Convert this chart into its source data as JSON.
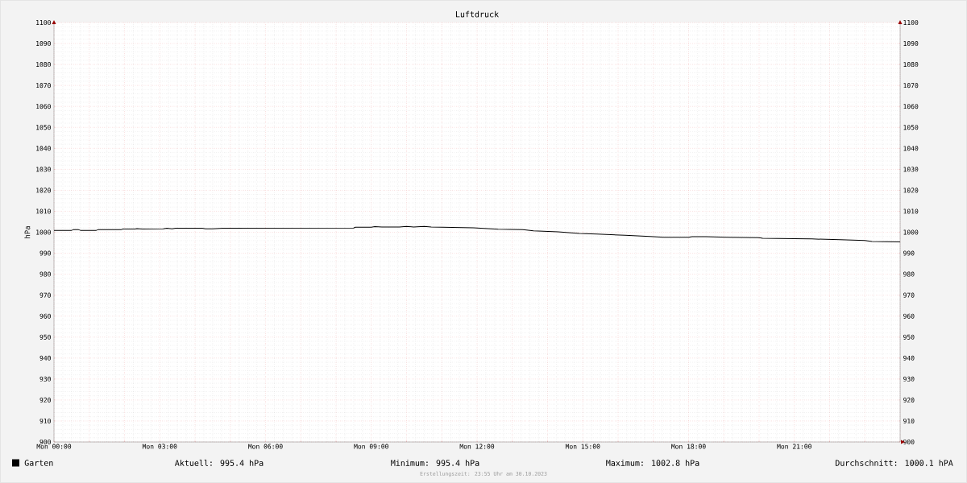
{
  "chart_data": {
    "type": "line",
    "title": "Luftdruck",
    "ylabel": "hPa",
    "x": [
      "2023-10-30T00:00",
      "2023-10-30T00:30",
      "2023-10-30T00:33",
      "2023-10-30T00:42",
      "2023-10-30T00:45",
      "2023-10-30T01:12",
      "2023-10-30T01:15",
      "2023-10-30T01:54",
      "2023-10-30T01:57",
      "2023-10-30T02:18",
      "2023-10-30T02:21",
      "2023-10-30T02:30",
      "2023-10-30T03:06",
      "2023-10-30T03:12",
      "2023-10-30T03:21",
      "2023-10-30T03:27",
      "2023-10-30T04:12",
      "2023-10-30T04:18",
      "2023-10-30T04:30",
      "2023-10-30T04:48",
      "2023-10-30T08:30",
      "2023-10-30T08:33",
      "2023-10-30T09:00",
      "2023-10-30T09:06",
      "2023-10-30T09:18",
      "2023-10-30T09:48",
      "2023-10-30T10:00",
      "2023-10-30T10:12",
      "2023-10-30T10:30",
      "2023-10-30T10:42",
      "2023-10-30T11:54",
      "2023-10-30T12:12",
      "2023-10-30T12:36",
      "2023-10-30T13:18",
      "2023-10-30T13:36",
      "2023-10-30T14:18",
      "2023-10-30T14:36",
      "2023-10-30T14:54",
      "2023-10-30T15:24",
      "2023-10-30T16:12",
      "2023-10-30T16:54",
      "2023-10-30T17:18",
      "2023-10-30T18:00",
      "2023-10-30T18:06",
      "2023-10-30T18:30",
      "2023-10-30T19:06",
      "2023-10-30T20:00",
      "2023-10-30T20:06",
      "2023-10-30T21:00",
      "2023-10-30T21:30",
      "2023-10-30T22:18",
      "2023-10-30T23:00",
      "2023-10-30T23:12",
      "2023-10-31T00:00"
    ],
    "series": [
      {
        "name": "Garten",
        "color": "#000000",
        "values": [
          1000.9,
          1000.9,
          1001.2,
          1001.2,
          1000.9,
          1000.9,
          1001.2,
          1001.2,
          1001.5,
          1001.5,
          1001.7,
          1001.5,
          1001.6,
          1001.9,
          1001.6,
          1001.9,
          1001.9,
          1001.6,
          1001.6,
          1001.9,
          1002.0,
          1002.4,
          1002.4,
          1002.7,
          1002.5,
          1002.5,
          1002.8,
          1002.5,
          1002.8,
          1002.5,
          1002.1,
          1001.8,
          1001.4,
          1001.2,
          1000.7,
          1000.2,
          999.8,
          999.4,
          999.1,
          998.6,
          998.0,
          997.6,
          997.6,
          997.9,
          997.9,
          997.6,
          997.4,
          997.1,
          996.9,
          996.8,
          996.4,
          996.1,
          995.6,
          995.4
        ]
      }
    ],
    "xlim": [
      "2023-10-30T00:00",
      "2023-10-31T00:00"
    ],
    "xticks": [
      {
        "value": "2023-10-30T00:00",
        "label": "Mon 00:00"
      },
      {
        "value": "2023-10-30T01:00",
        "label": null
      },
      {
        "value": "2023-10-30T02:00",
        "label": null
      },
      {
        "value": "2023-10-30T03:00",
        "label": "Mon 03:00"
      },
      {
        "value": "2023-10-30T04:00",
        "label": null
      },
      {
        "value": "2023-10-30T05:00",
        "label": null
      },
      {
        "value": "2023-10-30T06:00",
        "label": "Mon 06:00"
      },
      {
        "value": "2023-10-30T07:00",
        "label": null
      },
      {
        "value": "2023-10-30T08:00",
        "label": null
      },
      {
        "value": "2023-10-30T09:00",
        "label": "Mon 09:00"
      },
      {
        "value": "2023-10-30T10:00",
        "label": null
      },
      {
        "value": "2023-10-30T11:00",
        "label": null
      },
      {
        "value": "2023-10-30T12:00",
        "label": "Mon 12:00"
      },
      {
        "value": "2023-10-30T13:00",
        "label": null
      },
      {
        "value": "2023-10-30T14:00",
        "label": null
      },
      {
        "value": "2023-10-30T15:00",
        "label": "Mon 15:00"
      },
      {
        "value": "2023-10-30T16:00",
        "label": null
      },
      {
        "value": "2023-10-30T17:00",
        "label": null
      },
      {
        "value": "2023-10-30T18:00",
        "label": "Mon 18:00"
      },
      {
        "value": "2023-10-30T19:00",
        "label": null
      },
      {
        "value": "2023-10-30T20:00",
        "label": null
      },
      {
        "value": "2023-10-30T21:00",
        "label": "Mon 21:00"
      },
      {
        "value": "2023-10-30T22:00",
        "label": null
      },
      {
        "value": "2023-10-30T23:00",
        "label": null
      },
      {
        "value": "2023-10-31T00:00",
        "label": null
      }
    ],
    "ylim": [
      900,
      1100
    ],
    "yticks": [
      900,
      910,
      920,
      930,
      940,
      950,
      960,
      970,
      980,
      990,
      1000,
      1010,
      1020,
      1030,
      1040,
      1050,
      1060,
      1070,
      1080,
      1090,
      1100
    ],
    "y2lim": [
      900,
      1100
    ],
    "y2ticks": [
      900,
      910,
      920,
      930,
      940,
      950,
      960,
      970,
      980,
      990,
      1000,
      1010,
      1020,
      1030,
      1040,
      1050,
      1060,
      1070,
      1080,
      1090,
      1100
    ],
    "grid": true,
    "legend": "bottom left",
    "marker": "none",
    "line_style": "solid",
    "annotations": [
      "Aktuell: 995.4 hPa",
      "Minimum: 995.4 hPa",
      "Maximum: 1002.8 hPa",
      "Durchschnitt: 1000.1 hPA",
      "Erstellungszeit: 23:55 Uhr am 30.10.2023"
    ]
  }
}
